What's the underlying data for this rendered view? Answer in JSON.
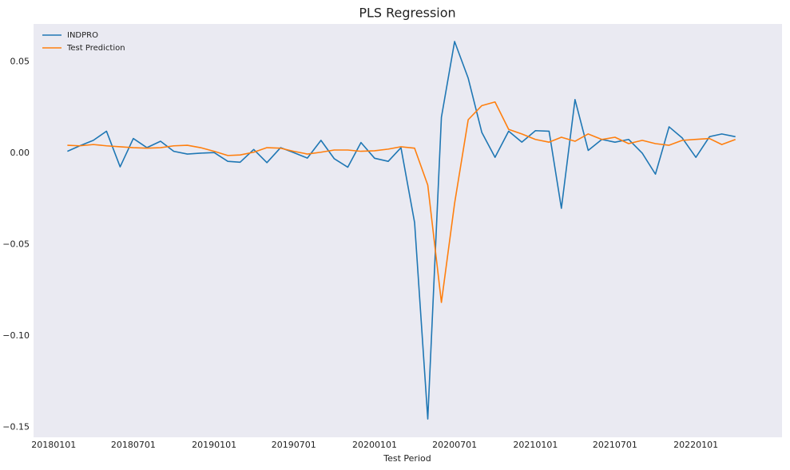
{
  "chart_data": {
    "type": "line",
    "title": "PLS Regression",
    "xlabel": "Test Period",
    "x": [
      "20180201",
      "20180301",
      "20180401",
      "20180501",
      "20180601",
      "20180701",
      "20180801",
      "20180901",
      "20181001",
      "20181101",
      "20181201",
      "20190101",
      "20190201",
      "20190301",
      "20190401",
      "20190501",
      "20190601",
      "20190701",
      "20190801",
      "20190901",
      "20191001",
      "20191101",
      "20191201",
      "20200101",
      "20200201",
      "20200301",
      "20200401",
      "20200501",
      "20200601",
      "20200701",
      "20200801",
      "20200901",
      "20201001",
      "20201101",
      "20201201",
      "20210101",
      "20210201",
      "20210301",
      "20210401",
      "20210501",
      "20210601",
      "20210701",
      "20210801",
      "20210901",
      "20211001",
      "20211101",
      "20211201",
      "20220101",
      "20220201",
      "20220301",
      "20220401"
    ],
    "series": [
      {
        "name": "INDPRO",
        "color": "#1f77b4",
        "values": [
          0.001,
          0.004,
          0.007,
          0.012,
          -0.0075,
          0.008,
          0.003,
          0.0065,
          0.001,
          -0.0005,
          0.0,
          0.0003,
          -0.0045,
          -0.005,
          0.002,
          -0.0052,
          0.003,
          0.0003,
          -0.0027,
          0.007,
          -0.003,
          -0.0077,
          0.0058,
          -0.0028,
          -0.0045,
          0.003,
          -0.038,
          -0.1455,
          0.0196,
          0.0611,
          0.041,
          0.0113,
          -0.0023,
          0.012,
          0.006,
          0.0123,
          0.012,
          -0.0302,
          0.0293,
          0.0015,
          0.0075,
          0.006,
          0.0075,
          0.0,
          -0.0115,
          0.0144,
          0.0083,
          -0.0023,
          0.009,
          0.0105,
          0.009
        ]
      },
      {
        "name": "Test Prediction",
        "color": "#ff7f0e",
        "values": [
          0.0043,
          0.004,
          0.0047,
          0.004,
          0.0035,
          0.003,
          0.0027,
          0.003,
          0.004,
          0.0043,
          0.003,
          0.001,
          -0.0013,
          -0.001,
          0.0005,
          0.003,
          0.0027,
          0.001,
          -0.0005,
          0.0005,
          0.0017,
          0.0017,
          0.001,
          0.0013,
          0.0022,
          0.0035,
          0.0027,
          -0.0175,
          -0.0817,
          -0.0275,
          0.0183,
          0.026,
          0.028,
          0.013,
          0.0105,
          0.0075,
          0.006,
          0.0087,
          0.0065,
          0.0105,
          0.0075,
          0.0087,
          0.0052,
          0.007,
          0.0052,
          0.0043,
          0.007,
          0.0075,
          0.008,
          0.0047,
          0.0075
        ]
      }
    ],
    "xlim": [
      "20171116",
      "20220716"
    ],
    "xticks": [
      "20180101",
      "20180701",
      "20190101",
      "20190701",
      "20200101",
      "20200701",
      "20210101",
      "20210701",
      "20220101"
    ],
    "ylim": [
      -0.1555,
      0.0707
    ],
    "yticks": [
      0.05,
      {
        "value": 0,
        "label": "0.00"
      },
      {
        "value": -0.05,
        "label": "−0.05"
      },
      {
        "value": -0.1,
        "label": "−0.10"
      },
      {
        "value": -0.15,
        "label": "−0.15"
      }
    ],
    "grid": false,
    "legend": "upper left"
  }
}
